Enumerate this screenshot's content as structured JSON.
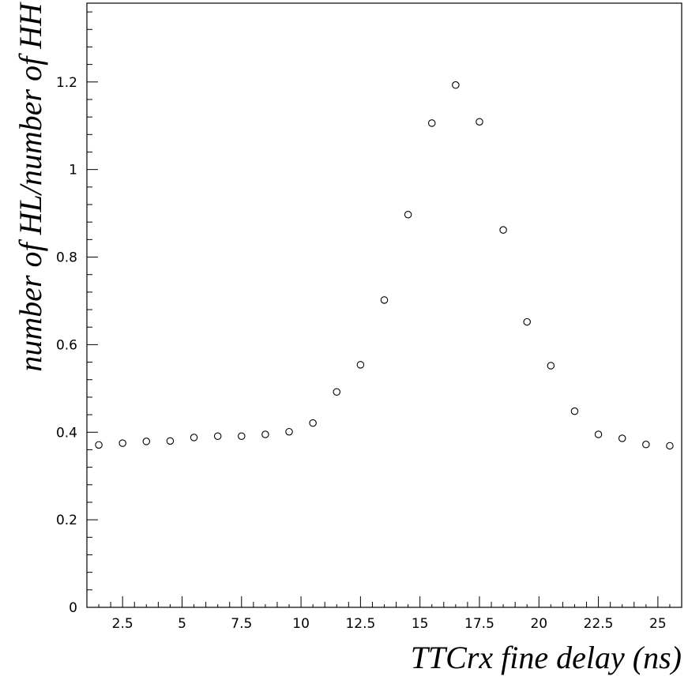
{
  "chart_data": {
    "type": "scatter",
    "title": "",
    "xlabel": "TTCrx fine delay (ns)",
    "ylabel": "number of HL/number of HH",
    "xlim": [
      1,
      26
    ],
    "ylim": [
      0,
      1.38
    ],
    "grid": false,
    "marker": "open-circle",
    "x_ticks": [
      2.5,
      5,
      7.5,
      10,
      12.5,
      15,
      17.5,
      20,
      22.5,
      25
    ],
    "x_tick_labels": [
      "2.5",
      "5",
      "7.5",
      "10",
      "12.5",
      "15",
      "17.5",
      "20",
      "22.5",
      "25"
    ],
    "y_ticks": [
      0,
      0.2,
      0.4,
      0.6,
      0.8,
      1,
      1.2
    ],
    "y_tick_labels": [
      "0",
      "0.2",
      "0.4",
      "0.6",
      "0.8",
      "1",
      "1.2"
    ],
    "series": [
      {
        "x": [
          1.5,
          2.5,
          3.5,
          4.5,
          5.5,
          6.5,
          7.5,
          8.5,
          9.5,
          10.5,
          11.5,
          12.5,
          13.5,
          14.5,
          15.5,
          16.5,
          17.5,
          18.5,
          19.5,
          20.5,
          21.5,
          22.5,
          23.5,
          24.5,
          25.5
        ],
        "y": [
          0.371,
          0.375,
          0.379,
          0.38,
          0.388,
          0.391,
          0.391,
          0.395,
          0.401,
          0.421,
          0.492,
          0.554,
          0.702,
          0.897,
          1.106,
          1.193,
          1.109,
          0.862,
          0.652,
          0.552,
          0.448,
          0.395,
          0.386,
          0.372,
          0.369
        ]
      }
    ]
  }
}
